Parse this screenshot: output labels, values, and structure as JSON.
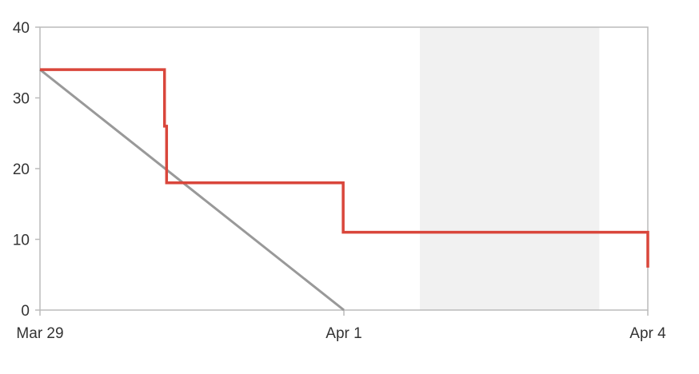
{
  "chart_data": {
    "type": "line",
    "title": "",
    "xlabel": "",
    "ylabel": "",
    "x_ticks": [
      "Mar 29",
      "Apr 1",
      "Apr 4"
    ],
    "y_ticks": [
      "0",
      "10",
      "20",
      "30",
      "40"
    ],
    "ylim": [
      0,
      40
    ],
    "xlim": [
      "Mar 29 00:00",
      "Apr 4 00:00"
    ],
    "grid": false,
    "legend": "none",
    "shaded_region": {
      "from": "Apr 1 18:00",
      "to": "Apr 3 12:30",
      "color": "#f1f1f1"
    },
    "series": [
      {
        "kind": "ideal-guideline",
        "color": "#999999",
        "points": [
          {
            "x": "Mar 29 00:00",
            "y": 34
          },
          {
            "x": "Apr 1 00:00",
            "y": 0
          }
        ]
      },
      {
        "kind": "actual-step",
        "color": "#d9463b",
        "points": [
          {
            "x": "Mar 29 00:00",
            "y": 34
          },
          {
            "x": "Mar 30 05:30",
            "y": 34
          },
          {
            "x": "Mar 30 05:30",
            "y": 26
          },
          {
            "x": "Mar 30 06:00",
            "y": 26
          },
          {
            "x": "Mar 30 06:00",
            "y": 18
          },
          {
            "x": "Mar 31 23:50",
            "y": 18
          },
          {
            "x": "Mar 31 23:50",
            "y": 11
          },
          {
            "x": "Apr 4 00:00",
            "y": 11
          },
          {
            "x": "Apr 4 00:00",
            "y": 6
          }
        ]
      }
    ]
  }
}
